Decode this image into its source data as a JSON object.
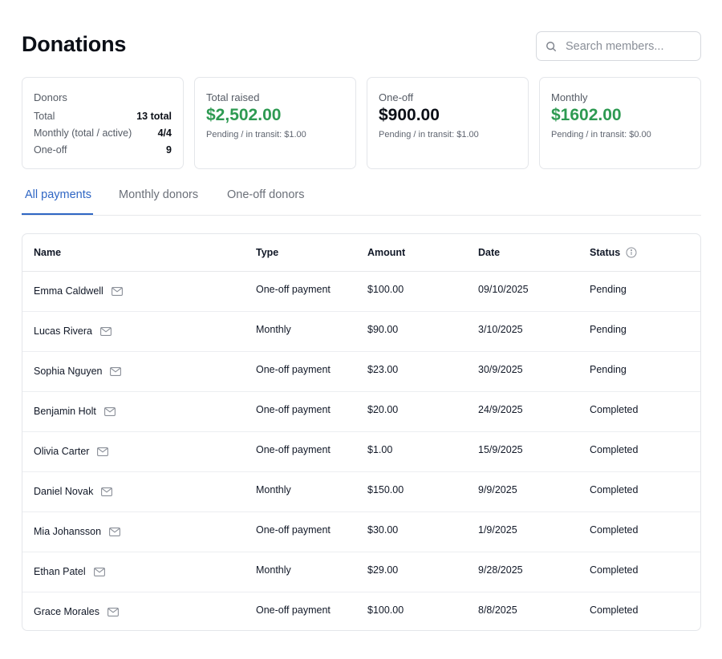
{
  "header": {
    "title": "Donations",
    "search_placeholder": "Search members..."
  },
  "cards": {
    "donors": {
      "label": "Donors",
      "rows": [
        {
          "key": "Total",
          "value": "13 total"
        },
        {
          "key": "Monthly (total / active)",
          "value": "4/4"
        },
        {
          "key": "One-off",
          "value": "9"
        }
      ]
    },
    "total_raised": {
      "label": "Total raised",
      "value": "$2,502.00",
      "sub": "Pending / in transit: $1.00",
      "color": "#2e9a52"
    },
    "one_off": {
      "label": "One-off",
      "value": "$900.00",
      "sub": "Pending / in transit: $1.00",
      "color": "#0b0f17"
    },
    "monthly": {
      "label": "Monthly",
      "value": "$1602.00",
      "sub": "Pending / in transit: $0.00",
      "color": "#2e9a52"
    }
  },
  "tabs": [
    {
      "label": "All payments",
      "active": true
    },
    {
      "label": "Monthly donors",
      "active": false
    },
    {
      "label": "One-off donors",
      "active": false
    }
  ],
  "table": {
    "columns": [
      "Name",
      "Type",
      "Amount",
      "Date",
      "Status"
    ],
    "status_info_icon": "info-icon",
    "row_icon": "mail-icon",
    "rows": [
      {
        "name": "Emma Caldwell",
        "type": "One-off payment",
        "amount": "$100.00",
        "date": "09/10/2025",
        "status": "Pending"
      },
      {
        "name": "Lucas Rivera",
        "type": "Monthly",
        "amount": "$90.00",
        "date": "3/10/2025",
        "status": "Pending"
      },
      {
        "name": "Sophia Nguyen",
        "type": "One-off payment",
        "amount": "$23.00",
        "date": "30/9/2025",
        "status": "Pending"
      },
      {
        "name": "Benjamin Holt",
        "type": "One-off payment",
        "amount": "$20.00",
        "date": "24/9/2025",
        "status": "Completed"
      },
      {
        "name": "Olivia Carter",
        "type": "One-off payment",
        "amount": "$1.00",
        "date": "15/9/2025",
        "status": "Completed"
      },
      {
        "name": "Daniel Novak",
        "type": "Monthly",
        "amount": "$150.00",
        "date": "9/9/2025",
        "status": "Completed"
      },
      {
        "name": "Mia Johansson",
        "type": "One-off payment",
        "amount": "$30.00",
        "date": "1/9/2025",
        "status": "Completed"
      },
      {
        "name": "Ethan Patel",
        "type": "Monthly",
        "amount": "$29.00",
        "date": "9/28/2025",
        "status": "Completed"
      },
      {
        "name": "Grace Morales",
        "type": "One-off payment",
        "amount": "$100.00",
        "date": "8/8/2025",
        "status": "Completed"
      }
    ]
  },
  "colors": {
    "accent": "#2f66c4",
    "positive": "#2e9a52",
    "border": "#e4e6ea"
  }
}
